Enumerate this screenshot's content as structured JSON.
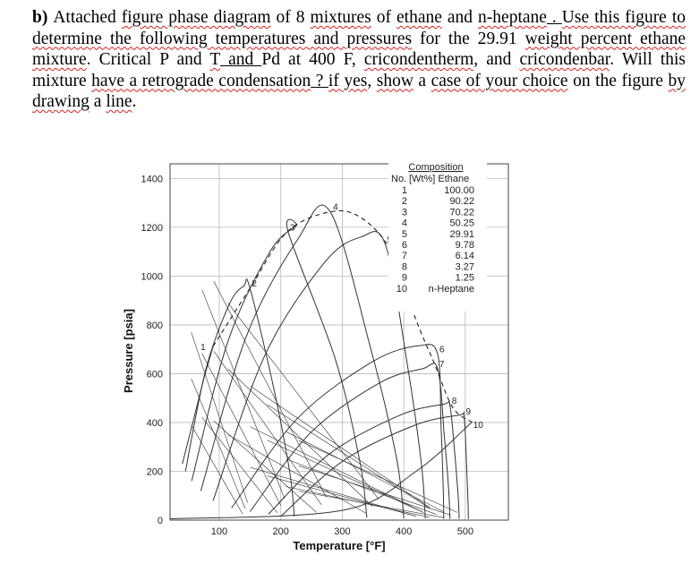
{
  "question": {
    "label": "b)",
    "segments": [
      {
        "t": "Attached ",
        "s": ""
      },
      {
        "t": "figure phase diagram",
        "s": "sq"
      },
      {
        "t": " of 8 ",
        "s": ""
      },
      {
        "t": "mixtures",
        "s": "sq"
      },
      {
        "t": " of ",
        "s": ""
      },
      {
        "t": "ethane",
        "s": "sq"
      },
      {
        "t": " and ",
        "s": ""
      },
      {
        "t": "n-heptane",
        "s": "sq"
      },
      {
        "t": " . ",
        "s": "ul"
      },
      {
        "t": "Use this figure to determine the following temperatures and pressures",
        "s": "sq"
      },
      {
        "t": " for the 29.91 ",
        "s": ""
      },
      {
        "t": "weight percent ethane mixture",
        "s": "sq"
      },
      {
        "t": ". Critical P and ",
        "s": ""
      },
      {
        "t": "T",
        "s": "sq"
      },
      {
        "t": "   and ",
        "s": "ul"
      },
      {
        "t": " Pd at 400 F, ",
        "s": ""
      },
      {
        "t": "cricondentherm",
        "s": "sq"
      },
      {
        "t": ", and ",
        "s": ""
      },
      {
        "t": "cricondenbar",
        "s": "sq"
      },
      {
        "t": ".  Will this mixture ",
        "s": ""
      },
      {
        "t": "have a retrograde condensation",
        "s": "sq"
      },
      {
        "t": " ? ",
        "s": "ul"
      },
      {
        "t": " ",
        "s": ""
      },
      {
        "t": "if yes",
        "s": "sq"
      },
      {
        "t": ", ",
        "s": ""
      },
      {
        "t": "show",
        "s": "sq"
      },
      {
        "t": " a ",
        "s": ""
      },
      {
        "t": "case of your choice",
        "s": "sq"
      },
      {
        "t": " on the figure ",
        "s": ""
      },
      {
        "t": "by drawing",
        "s": "sq"
      },
      {
        "t": " a ",
        "s": ""
      },
      {
        "t": "line",
        "s": "sq"
      },
      {
        "t": ".",
        "s": ""
      }
    ]
  },
  "chart_data": {
    "type": "line",
    "xlabel": "Temperature [°F]",
    "ylabel": "Pressure [psia]",
    "xticks": [
      100,
      200,
      300,
      400,
      500
    ],
    "yticks": [
      0,
      200,
      400,
      600,
      800,
      1000,
      1200,
      1400
    ],
    "xlim": [
      20,
      570
    ],
    "ylim": [
      0,
      1460
    ],
    "legend": {
      "title": "Composition",
      "header": [
        "No.",
        "[Wt%] Ethane"
      ],
      "placement": "top-right",
      "rows": [
        {
          "no": "1",
          "comp": "100.00"
        },
        {
          "no": "2",
          "comp": "90.22"
        },
        {
          "no": "3",
          "comp": "70.22"
        },
        {
          "no": "4",
          "comp": "50.25"
        },
        {
          "no": "5",
          "comp": "29.91"
        },
        {
          "no": "6",
          "comp": "9.78"
        },
        {
          "no": "7",
          "comp": "6.14"
        },
        {
          "no": "8",
          "comp": "3.27"
        },
        {
          "no": "9",
          "comp": "1.25"
        },
        {
          "no": "10",
          "comp": "n-Heptane"
        }
      ]
    },
    "vapor_pressure_curves": [
      {
        "name": "1",
        "x": [
          40,
          60,
          75,
          90
        ],
        "y": [
          230,
          430,
          580,
          712
        ]
      },
      {
        "name": "10",
        "x": [
          20,
          300,
          420,
          510
        ],
        "y": [
          5,
          40,
          200,
          400
        ]
      }
    ],
    "critical_locus": {
      "x": [
        90,
        150,
        210,
        280,
        330,
        380,
        420,
        450,
        480,
        512
      ],
      "y": [
        712,
        950,
        1180,
        1263,
        1240,
        1100,
        820,
        640,
        460,
        400
      ]
    },
    "envelopes": [
      {
        "name": "2",
        "critical": [
          150,
          950
        ],
        "cricondenbar": [
          140,
          960
        ],
        "dew_end": [
          222,
          15
        ],
        "bubble_start": [
          45,
          200
        ]
      },
      {
        "name": "3",
        "critical": [
          212,
          1180
        ],
        "cricondenbar": [
          225,
          1205
        ],
        "dew_end": [
          340,
          10
        ],
        "bubble_start": [
          55,
          160
        ]
      },
      {
        "name": "4",
        "critical": [
          282,
          1263
        ],
        "cricondenbar": [
          280,
          1265
        ],
        "dew_end": [
          400,
          8
        ],
        "bubble_start": [
          70,
          120
        ]
      },
      {
        "name": "5",
        "critical": [
          370,
          1130
        ],
        "cricondenbar": [
          330,
          1160
        ],
        "dew_end": [
          435,
          6
        ],
        "bubble_start": [
          90,
          80
        ]
      },
      {
        "name": "6",
        "critical": [
          455,
          680
        ],
        "cricondenbar": [
          425,
          715
        ],
        "dew_end": [
          465,
          5
        ],
        "bubble_start": [
          120,
          50
        ]
      },
      {
        "name": "7",
        "critical": [
          455,
          620
        ],
        "cricondenbar": [
          430,
          620
        ],
        "dew_end": [
          475,
          5
        ],
        "bubble_start": [
          150,
          35
        ]
      },
      {
        "name": "8",
        "critical": [
          475,
          470
        ],
        "cricondenbar": [
          465,
          475
        ],
        "dew_end": [
          490,
          5
        ],
        "bubble_start": [
          180,
          25
        ]
      },
      {
        "name": "9",
        "critical": [
          498,
          425
        ],
        "cricondenbar": [
          490,
          430
        ],
        "dew_end": [
          505,
          5
        ],
        "bubble_start": [
          200,
          15
        ]
      }
    ]
  }
}
